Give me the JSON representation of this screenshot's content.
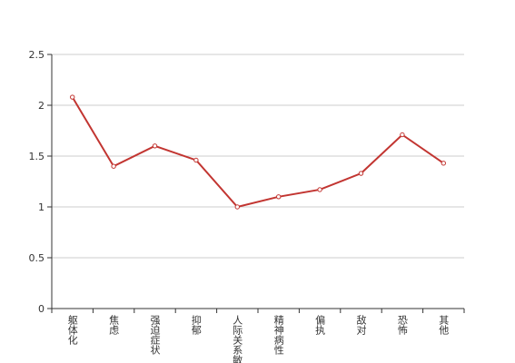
{
  "chart_data": {
    "type": "line",
    "categories": [
      "躯体化",
      "焦虑",
      "强迫症状",
      "抑郁",
      "人际关系敏感",
      "精神病性",
      "偏执",
      "敌对",
      "恐怖",
      "其他"
    ],
    "values": [
      2.08,
      1.4,
      1.6,
      1.46,
      1.0,
      1.1,
      1.17,
      1.33,
      1.71,
      1.43
    ],
    "color": "#c23531",
    "ylim": [
      0,
      2.5
    ],
    "yticks": [
      0,
      0.5,
      1,
      1.5,
      2,
      2.5
    ],
    "grid": true
  }
}
